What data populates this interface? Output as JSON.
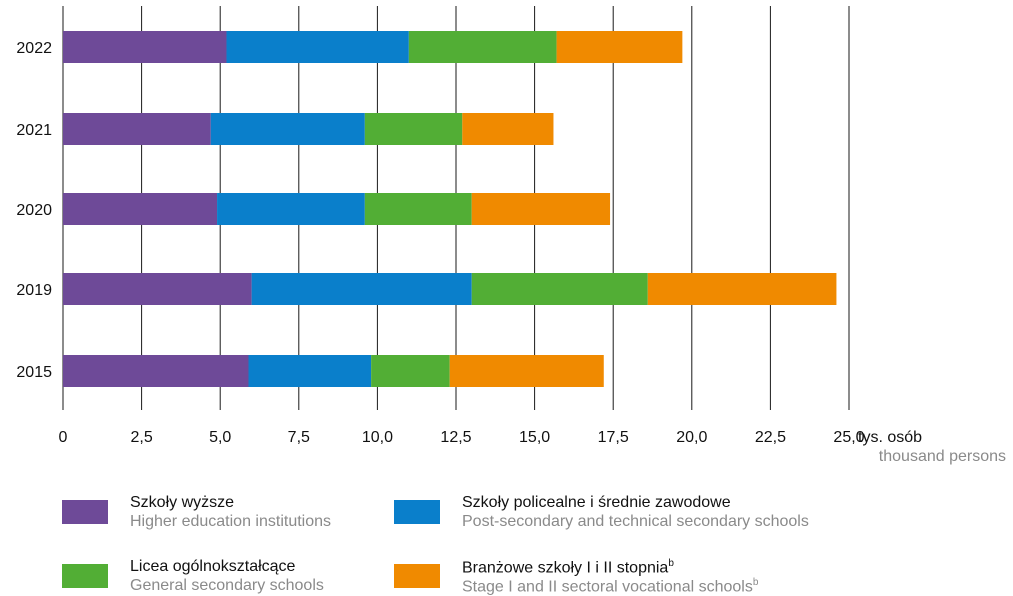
{
  "chart_data": {
    "type": "bar",
    "orientation": "horizontal",
    "stacked": true,
    "categories": [
      "2022",
      "2021",
      "2020",
      "2019",
      "2015"
    ],
    "xlim": [
      0,
      25
    ],
    "x_ticks": [
      "0",
      "2,5",
      "5,0",
      "7,5",
      "10,0",
      "12,5",
      "15,0",
      "17,5",
      "20,0",
      "22,5",
      "25,0"
    ],
    "x_unit_pl": "tys. osób",
    "x_unit_en": "thousand persons",
    "grid": true,
    "series": [
      {
        "name": "Szkoły wyższe",
        "name_en": "Higher education institutions",
        "color": "#6e4a98",
        "values": [
          5.2,
          4.7,
          4.9,
          6.0,
          5.9
        ]
      },
      {
        "name": "Szkoły policealne i średnie zawodowe",
        "name_en": "Post-secondary and technical secondary schools",
        "color": "#0a7fcb",
        "values": [
          5.8,
          4.9,
          4.7,
          7.0,
          3.9
        ]
      },
      {
        "name": "Licea ogólnokształcące",
        "name_en": "General secondary schools",
        "color": "#52ae35",
        "values": [
          4.7,
          3.1,
          3.4,
          5.6,
          2.5
        ]
      },
      {
        "name": "Branżowe szkoły I i II stopnia",
        "name_en": "Stage I and II sectoral vocational schools",
        "footnote": "b",
        "color": "#f08a00",
        "values": [
          4.0,
          2.9,
          4.4,
          6.0,
          4.9
        ]
      }
    ],
    "legend_position": "bottom"
  }
}
